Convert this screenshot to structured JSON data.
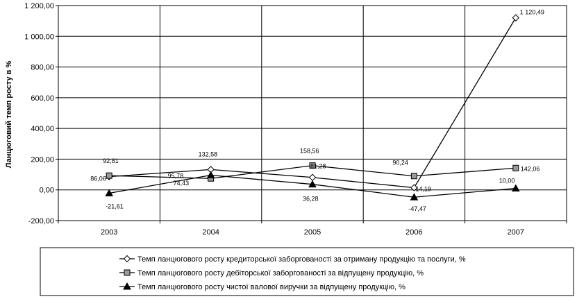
{
  "chart_data": {
    "type": "line",
    "title": "",
    "xlabel": "",
    "ylabel": "Ланцюговий темп росту в %",
    "categories": [
      "2003",
      "2004",
      "2005",
      "2006",
      "2007"
    ],
    "ylim": [
      -200,
      1200
    ],
    "yticks": [
      -200,
      0,
      200,
      400,
      600,
      800,
      1000,
      1200
    ],
    "ytick_labels": [
      "-200,00",
      "0,00",
      "200,00",
      "400,00",
      "600,00",
      "800,00",
      "1 000,00",
      "1 200,00"
    ],
    "grid": true,
    "legend_position": "bottom",
    "series": [
      {
        "name": "Темп ланцюгового росту кредиторської заборгованості за отриману продукцію та послуги, %",
        "marker": "diamond-open",
        "values": [
          86.06,
          132.58,
          81.28,
          14.19,
          1120.49
        ],
        "labels": [
          "86,06",
          "132,58",
          "81,28",
          "14,19",
          "1 120,49"
        ]
      },
      {
        "name": "Темп ланцюгового росту дебіторської заборгованості за відпущену продукцію, %",
        "marker": "square-gray",
        "values": [
          92.81,
          74.43,
          158.56,
          90.24,
          142.06
        ],
        "labels": [
          "92,81",
          "74,43",
          "158,56",
          "90,24",
          "142,06"
        ]
      },
      {
        "name": "Темп ланцюгового росту чистої валової виручки за відпущену продукцію, %",
        "marker": "triangle-black",
        "values": [
          -21.61,
          95.78,
          36.28,
          -47.47,
          10.0
        ],
        "labels": [
          "-21,61",
          "95,78",
          "36,28",
          "-47,47",
          "10,00"
        ]
      }
    ]
  }
}
